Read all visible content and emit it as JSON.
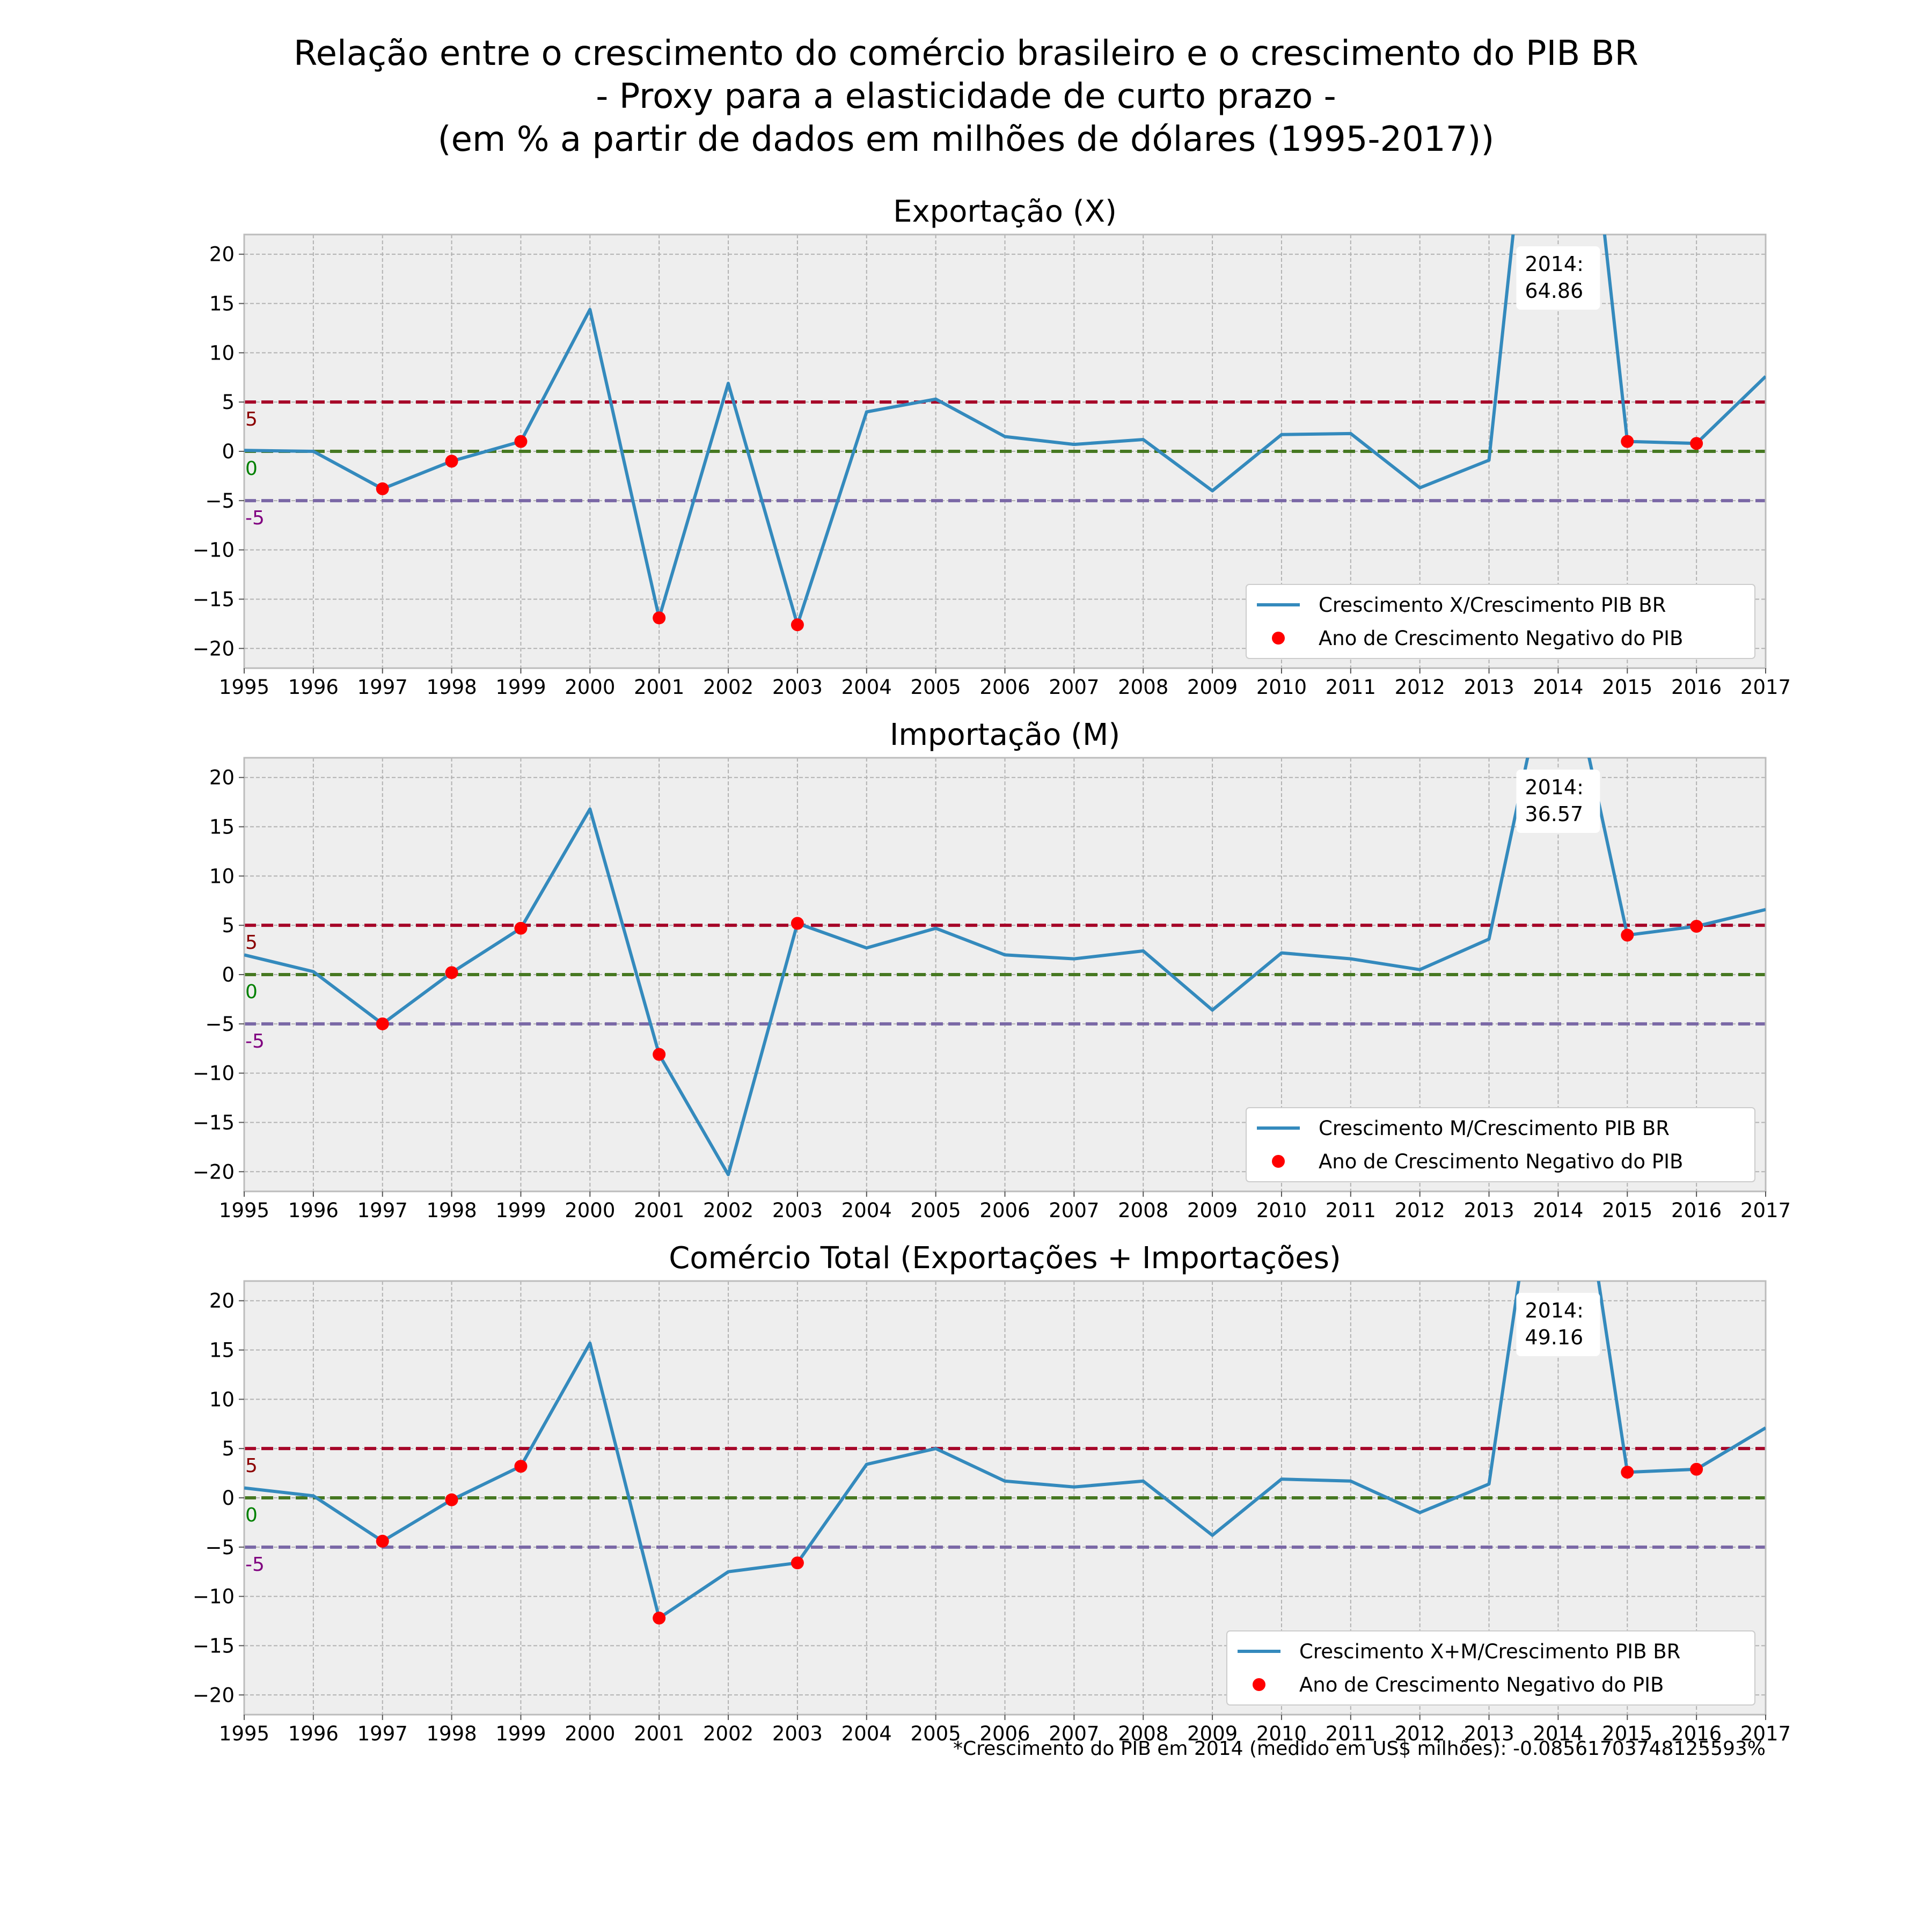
{
  "figure": {
    "title_lines": [
      "Relação entre o crescimento do comércio brasileiro e o crescimento do PIB BR",
      "- Proxy para a elasticidade de curto prazo -",
      "(em % a partir de dados em milhões de dólares (1995-2017))"
    ],
    "footnote": "*Crescimento do PIB em 2014 (medido em US$ milhões): -0.08561703748125593%"
  },
  "colors": {
    "line": "#348ABD",
    "points": "#FF0000",
    "ref_pos": "#A60628",
    "ref_zero": "#467821",
    "ref_neg": "#7A68A6",
    "label_pos": "#8B0000",
    "label_zero": "#008000",
    "label_neg": "#800080",
    "plot_bg": "#EEEEEE"
  },
  "chart_data": [
    {
      "type": "line",
      "title": "Exportação (X)",
      "x": [
        1995,
        1996,
        1997,
        1998,
        1999,
        2000,
        2001,
        2002,
        2003,
        2004,
        2005,
        2006,
        2007,
        2008,
        2009,
        2010,
        2011,
        2012,
        2013,
        2014,
        2015,
        2016,
        2017
      ],
      "xticks": [
        "1995",
        "1996",
        "1997",
        "1998",
        "1999",
        "2000",
        "2001",
        "2002",
        "2003",
        "2004",
        "2005",
        "2006",
        "2007",
        "2008",
        "2009",
        "2010",
        "2011",
        "2012",
        "2013",
        "2014",
        "2015",
        "2016",
        "2017"
      ],
      "yticks": [
        "20",
        "15",
        "10",
        "5",
        "0",
        "−5",
        "−10",
        "−15",
        "−20"
      ],
      "ylim": [
        -22,
        22
      ],
      "xlim": [
        1995,
        2017
      ],
      "grid": true,
      "series": [
        {
          "name": "Crescimento X/Crescimento PIB BR",
          "values": [
            0.1,
            0.0,
            -3.8,
            -1.0,
            1.0,
            14.4,
            -16.9,
            6.9,
            -17.6,
            4.0,
            5.3,
            1.5,
            0.7,
            1.2,
            -4.0,
            1.7,
            1.8,
            -3.7,
            -0.9,
            64.86,
            1.0,
            0.8,
            7.6
          ]
        }
      ],
      "negative_gdp_points": {
        "name": "Ano de Crescimento Negativo do PIB",
        "x": [
          1997,
          1998,
          1999,
          2001,
          2003,
          2015,
          2016
        ],
        "y": [
          -3.8,
          -1.0,
          1.0,
          -16.9,
          -17.6,
          1.0,
          0.8
        ]
      },
      "reference_lines": [
        {
          "y": 5,
          "label": "5"
        },
        {
          "y": 0,
          "label": "0"
        },
        {
          "y": -5,
          "label": "-5"
        }
      ],
      "annotation": {
        "x": 2014,
        "y": 64.86,
        "text": [
          "2014:",
          "64.86"
        ]
      },
      "legend_position": "lower right"
    },
    {
      "type": "line",
      "title": "Importação (M)",
      "x": [
        1995,
        1996,
        1997,
        1998,
        1999,
        2000,
        2001,
        2002,
        2003,
        2004,
        2005,
        2006,
        2007,
        2008,
        2009,
        2010,
        2011,
        2012,
        2013,
        2014,
        2015,
        2016,
        2017
      ],
      "xticks": [
        "1995",
        "1996",
        "1997",
        "1998",
        "1999",
        "2000",
        "2001",
        "2002",
        "2003",
        "2004",
        "2005",
        "2006",
        "2007",
        "2008",
        "2009",
        "2010",
        "2011",
        "2012",
        "2013",
        "2014",
        "2015",
        "2016",
        "2017"
      ],
      "yticks": [
        "20",
        "15",
        "10",
        "5",
        "0",
        "−5",
        "−10",
        "−15",
        "−20"
      ],
      "ylim": [
        -22,
        22
      ],
      "xlim": [
        1995,
        2017
      ],
      "grid": true,
      "series": [
        {
          "name": "Crescimento M/Crescimento PIB BR",
          "values": [
            2.0,
            0.3,
            -5.0,
            0.2,
            4.7,
            16.8,
            -8.1,
            -20.3,
            5.2,
            2.7,
            4.7,
            2.0,
            1.6,
            2.4,
            -3.6,
            2.2,
            1.6,
            0.5,
            3.6,
            36.57,
            4.0,
            4.9,
            6.6
          ]
        }
      ],
      "negative_gdp_points": {
        "name": "Ano de Crescimento Negativo do PIB",
        "x": [
          1997,
          1998,
          1999,
          2001,
          2003,
          2015,
          2016
        ],
        "y": [
          -5.0,
          0.2,
          4.7,
          -8.1,
          5.2,
          4.0,
          4.9
        ]
      },
      "reference_lines": [
        {
          "y": 5,
          "label": "5"
        },
        {
          "y": 0,
          "label": "0"
        },
        {
          "y": -5,
          "label": "-5"
        }
      ],
      "annotation": {
        "x": 2014,
        "y": 36.57,
        "text": [
          "2014:",
          "36.57"
        ]
      },
      "legend_position": "lower right"
    },
    {
      "type": "line",
      "title": "Comércio Total (Exportações + Importações)",
      "x": [
        1995,
        1996,
        1997,
        1998,
        1999,
        2000,
        2001,
        2002,
        2003,
        2004,
        2005,
        2006,
        2007,
        2008,
        2009,
        2010,
        2011,
        2012,
        2013,
        2014,
        2015,
        2016,
        2017
      ],
      "xticks": [
        "1995",
        "1996",
        "1997",
        "1998",
        "1999",
        "2000",
        "2001",
        "2002",
        "2003",
        "2004",
        "2005",
        "2006",
        "2007",
        "2008",
        "2009",
        "2010",
        "2011",
        "2012",
        "2013",
        "2014",
        "2015",
        "2016",
        "2017"
      ],
      "yticks": [
        "20",
        "15",
        "10",
        "5",
        "0",
        "−5",
        "−10",
        "−15",
        "−20"
      ],
      "ylim": [
        -22,
        22
      ],
      "xlim": [
        1995,
        2017
      ],
      "grid": true,
      "series": [
        {
          "name": "Crescimento X+M/Crescimento PIB BR",
          "values": [
            1.0,
            0.2,
            -4.4,
            -0.2,
            3.2,
            15.7,
            -12.2,
            -7.5,
            -6.6,
            3.4,
            5.0,
            1.7,
            1.1,
            1.7,
            -3.8,
            1.9,
            1.7,
            -1.5,
            1.4,
            49.16,
            2.6,
            2.9,
            7.1
          ]
        }
      ],
      "negative_gdp_points": {
        "name": "Ano de Crescimento Negativo do PIB",
        "x": [
          1997,
          1998,
          1999,
          2001,
          2003,
          2015,
          2016
        ],
        "y": [
          -4.4,
          -0.2,
          3.2,
          -12.2,
          -6.6,
          2.6,
          2.9
        ]
      },
      "reference_lines": [
        {
          "y": 5,
          "label": "5"
        },
        {
          "y": 0,
          "label": "0"
        },
        {
          "y": -5,
          "label": "-5"
        }
      ],
      "annotation": {
        "x": 2014,
        "y": 49.16,
        "text": [
          "2014:",
          "49.16"
        ]
      },
      "legend_position": "lower right"
    }
  ]
}
